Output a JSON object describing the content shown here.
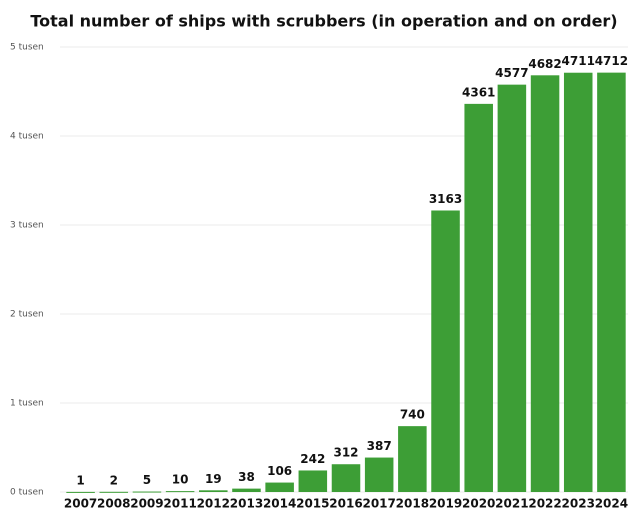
{
  "chart_data": {
    "type": "bar",
    "title": "Total number of ships with scrubbers (in operation and on order)",
    "categories": [
      "2007",
      "2008",
      "2009",
      "2011",
      "2012",
      "2013",
      "2014",
      "2015",
      "2016",
      "2017",
      "2018",
      "2019",
      "2020",
      "2021",
      "2022",
      "2023",
      "2024"
    ],
    "values": [
      1,
      2,
      5,
      10,
      19,
      38,
      106,
      242,
      312,
      387,
      740,
      3163,
      4361,
      4577,
      4682,
      4711,
      4712
    ],
    "color": "#3d9e36",
    "ylim": [
      0,
      5000
    ],
    "yticks": [
      {
        "value": 0,
        "label": "0 tusen"
      },
      {
        "value": 1000,
        "label": "1 tusen"
      },
      {
        "value": 2000,
        "label": "2 tusen"
      },
      {
        "value": 3000,
        "label": "3 tusen"
      },
      {
        "value": 4000,
        "label": "4 tusen"
      },
      {
        "value": 5000,
        "label": "5 tusen"
      }
    ],
    "grid": true
  }
}
